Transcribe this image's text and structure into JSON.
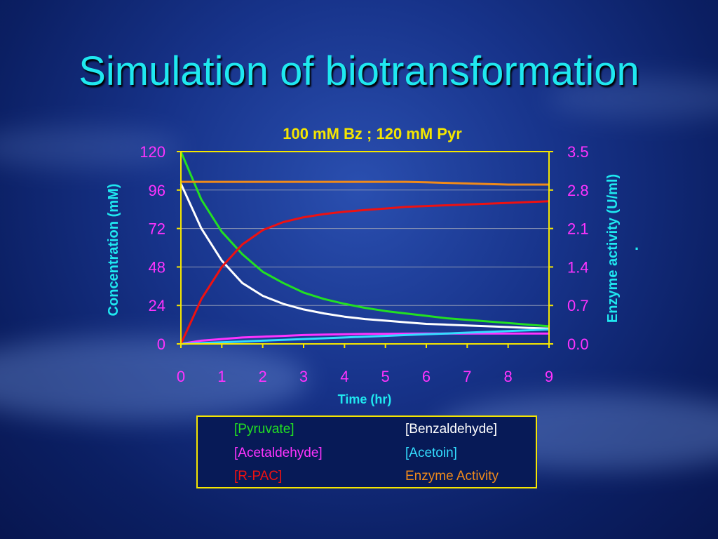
{
  "slide": {
    "title": "Simulation of biotransformation"
  },
  "colors": {
    "background": "#0b1f63",
    "title": "#1fe8f0",
    "axis": "#f5e600",
    "tick_labels": "#ff33ff",
    "axis_titles": "#1fe8f0",
    "chart_title": "#f5e600"
  },
  "legend": {
    "items": [
      {
        "label": "[Pyruvate]",
        "color": "#22e022"
      },
      {
        "label": "[Benzaldehyde]",
        "color": "#ffffff"
      },
      {
        "label": "[Acetaldehyde]",
        "color": "#ff33ff"
      },
      {
        "label": "[Acetoin]",
        "color": "#33ddff"
      },
      {
        "label": "[R-PAC]",
        "color": "#ee1111"
      },
      {
        "label": "Enzyme Activity",
        "color": "#f08a1a"
      }
    ]
  },
  "annotations": {
    "dot": "."
  },
  "chart_data": {
    "type": "line",
    "title": "100 mM Bz ; 120 mM Pyr",
    "xlabel": "Time (hr)",
    "ylabel": "Concentration (mM)",
    "y2label": "Enzyme activity (U/ml)",
    "xlim": [
      0,
      9
    ],
    "ylim": [
      0,
      120
    ],
    "y2lim": [
      0,
      3.5
    ],
    "x_ticks": [
      "0",
      "1",
      "2",
      "3",
      "4",
      "5",
      "6",
      "7",
      "8",
      "9"
    ],
    "y_ticks": [
      "0",
      "24",
      "48",
      "72",
      "96",
      "120"
    ],
    "y2_ticks": [
      "0.0",
      "0.7",
      "1.4",
      "2.1",
      "2.8",
      "3.5"
    ],
    "grid": "horizontal",
    "legend_position": "bottom",
    "x": [
      0,
      0.5,
      1,
      1.5,
      2,
      2.5,
      3,
      3.5,
      4,
      4.5,
      5,
      5.5,
      6,
      6.5,
      7,
      7.5,
      8,
      8.5,
      9
    ],
    "series": [
      {
        "name": "[Pyruvate]",
        "axis": "left",
        "color": "#22e022",
        "values": [
          120,
          90,
          70,
          56,
          45,
          38,
          32,
          28,
          25,
          22.5,
          20.5,
          19,
          17.5,
          16,
          15,
          14,
          13,
          12,
          11
        ]
      },
      {
        "name": "[Benzaldehyde]",
        "axis": "left",
        "color": "#ffffff",
        "values": [
          100,
          72,
          52,
          38,
          30,
          25,
          21.5,
          19,
          17,
          15.5,
          14.5,
          13.5,
          12.5,
          12,
          11.5,
          11,
          10.5,
          10,
          9.5
        ]
      },
      {
        "name": "[Acetaldehyde]",
        "axis": "left",
        "color": "#ff33ff",
        "values": [
          0,
          2,
          3,
          4,
          4.5,
          5,
          5.5,
          5.8,
          6,
          6.2,
          6.3,
          6.4,
          6.5,
          6.5,
          6.5,
          6.5,
          6.5,
          6.5,
          6.5
        ]
      },
      {
        "name": "[Acetoin]",
        "axis": "left",
        "color": "#33ddff",
        "values": [
          0,
          0.5,
          1,
          1.5,
          2,
          2.5,
          3,
          3.5,
          4,
          4.5,
          5,
          5.5,
          6,
          6.5,
          7,
          7.5,
          8,
          8.5,
          9
        ]
      },
      {
        "name": "[R-PAC]",
        "axis": "left",
        "color": "#ee1111",
        "values": [
          0,
          28,
          48,
          62,
          71,
          76,
          79,
          81,
          82.5,
          83.5,
          84.5,
          85.5,
          86,
          86.5,
          87,
          87.5,
          88,
          88.5,
          89
        ]
      },
      {
        "name": "Enzyme Activity",
        "axis": "right",
        "color": "#f08a1a",
        "values": [
          2.95,
          2.95,
          2.95,
          2.95,
          2.95,
          2.95,
          2.95,
          2.95,
          2.95,
          2.95,
          2.95,
          2.95,
          2.94,
          2.93,
          2.92,
          2.91,
          2.9,
          2.9,
          2.9
        ]
      }
    ]
  }
}
